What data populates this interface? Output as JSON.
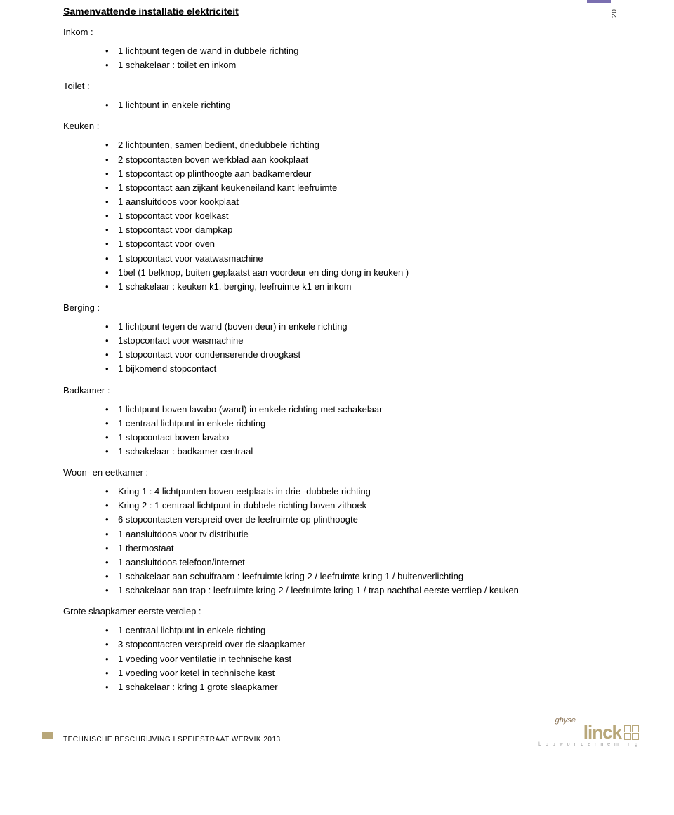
{
  "colors": {
    "accent": "#7a6fb0",
    "footer_block": "#b8a77a",
    "logo_brown": "#b8a77a",
    "logo_ghyse": "#8b7355"
  },
  "page_number": "20",
  "title": "Samenvattende installatie elektriciteit",
  "sections": [
    {
      "heading": "Inkom :",
      "items": [
        "1 lichtpunt tegen de wand in dubbele richting",
        "1 schakelaar : toilet en inkom"
      ]
    },
    {
      "heading": "Toilet :",
      "items": [
        "1 lichtpunt in enkele richting"
      ]
    },
    {
      "heading": "Keuken :",
      "items": [
        "2 lichtpunten, samen bedient, driedubbele richting",
        "2 stopcontacten boven werkblad aan kookplaat",
        "1 stopcontact op plinthoogte aan badkamerdeur",
        "1 stopcontact aan zijkant keukeneiland kant leefruimte",
        "1 aansluitdoos voor kookplaat",
        "1 stopcontact voor koelkast",
        "1 stopcontact voor dampkap",
        "1 stopcontact voor oven",
        "1 stopcontact voor vaatwasmachine",
        "1bel (1 belknop, buiten geplaatst aan voordeur en ding dong in keuken )",
        "1 schakelaar : keuken k1, berging, leefruimte k1 en inkom"
      ]
    },
    {
      "heading": "Berging :",
      "items": [
        "1 lichtpunt tegen de wand (boven deur) in enkele richting",
        "1stopcontact voor wasmachine",
        "1 stopcontact voor condenserende droogkast",
        "1 bijkomend stopcontact"
      ]
    },
    {
      "heading": "Badkamer :",
      "items": [
        "1 lichtpunt boven lavabo (wand) in enkele richting met schakelaar",
        "1 centraal lichtpunt in enkele richting",
        "1 stopcontact boven lavabo",
        "1 schakelaar : badkamer centraal"
      ]
    },
    {
      "heading": "Woon- en eetkamer :",
      "items": [
        "Kring 1 : 4 lichtpunten boven eetplaats in drie -dubbele richting",
        "Kring 2 : 1 centraal lichtpunt in dubbele richting boven zithoek",
        "6 stopcontacten verspreid over de leefruimte op plinthoogte",
        "1 aansluitdoos voor tv distributie",
        "1 thermostaat",
        "1 aansluitdoos telefoon/internet",
        "1 schakelaar aan schuifraam : leefruimte kring 2 / leefruimte kring 1 / buitenverlichting",
        "1 schakelaar aan trap : leefruimte kring 2 / leefruimte kring 1 / trap nachthal eerste verdiep / keuken"
      ]
    },
    {
      "heading": "Grote slaapkamer eerste verdiep :",
      "items": [
        "1 centraal lichtpunt in enkele richting",
        "3 stopcontacten verspreid over de slaapkamer",
        "1 voeding voor ventilatie in technische kast",
        "1 voeding voor ketel in technische kast",
        "1 schakelaar : kring 1 grote slaapkamer"
      ]
    }
  ],
  "footer": {
    "text": "TECHNISCHE BESCHRIJVING  I  SPEIESTRAAT WERVIK 2013",
    "logo_ghyse": "ghyse",
    "logo_main": "linck",
    "logo_sub": "b o u w o n d e r n e m i n g"
  }
}
